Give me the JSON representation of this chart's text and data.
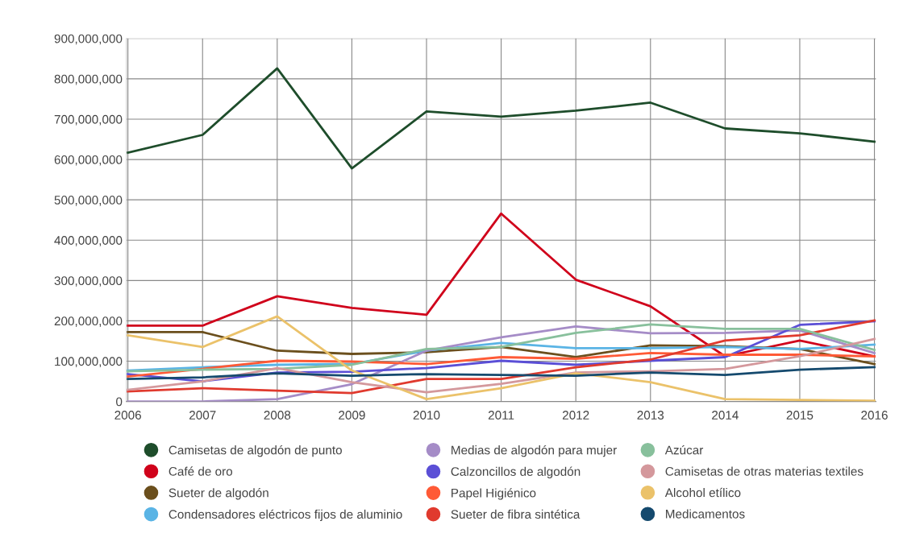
{
  "chart_data": {
    "type": "line",
    "categories": [
      "2006",
      "2007",
      "2008",
      "2009",
      "2010",
      "2011",
      "2012",
      "2013",
      "2014",
      "2015",
      "2016"
    ],
    "ylim": [
      0,
      900000000
    ],
    "yticks": [
      0,
      {
        "value": 100000000,
        "label": "100,000,000"
      },
      {
        "value": 200000000,
        "label": "200,000,000"
      },
      {
        "value": 300000000,
        "label": "300,000,000"
      },
      {
        "value": 400000000,
        "label": "400,000,000"
      },
      {
        "value": 500000000,
        "label": "500,000,000"
      },
      {
        "value": 600000000,
        "label": "600,000,000"
      },
      {
        "value": 700000000,
        "label": "700,000,000"
      },
      {
        "value": 800000000,
        "label": "800,000,000"
      },
      {
        "value": 900000000,
        "label": "900,000,000"
      }
    ],
    "grid": true,
    "legend": "bottom",
    "line_style": "solid",
    "series": [
      {
        "name": "Camisetas de algodón de punto",
        "color": "#1e4d2b",
        "values": [
          617000000,
          661000000,
          826000000,
          578000000,
          719000000,
          706000000,
          721000000,
          741000000,
          677000000,
          665000000,
          644000000
        ]
      },
      {
        "name": "Café de oro",
        "color": "#d0021b",
        "values": [
          188000000,
          188000000,
          261000000,
          232000000,
          215000000,
          466000000,
          302000000,
          236000000,
          112000000,
          151000000,
          112000000
        ]
      },
      {
        "name": "Sueter de algodón",
        "color": "#6b4f1d",
        "values": [
          172000000,
          172000000,
          126000000,
          118000000,
          122000000,
          135000000,
          110000000,
          139000000,
          137000000,
          130000000,
          93000000
        ]
      },
      {
        "name": "Condensadores eléctricos fijos de aluminio",
        "color": "#5ab4e5",
        "values": [
          77000000,
          85000000,
          91000000,
          93000000,
          126000000,
          145000000,
          132000000,
          132000000,
          135000000,
          130000000,
          141000000
        ]
      },
      {
        "name": "Medias de algodón para mujer",
        "color": "#a58cc7",
        "values": [
          0,
          0,
          6000000,
          43000000,
          126000000,
          159000000,
          186000000,
          169000000,
          170000000,
          176000000,
          120000000
        ]
      },
      {
        "name": "Calzoncillos de algodón",
        "color": "#5b4fd6",
        "values": [
          68000000,
          50000000,
          72000000,
          74000000,
          83000000,
          101000000,
          91000000,
          101000000,
          110000000,
          190000000,
          199000000
        ]
      },
      {
        "name": "Papel Higiénico",
        "color": "#ff5a36",
        "values": [
          62000000,
          81000000,
          101000000,
          99000000,
          93000000,
          110000000,
          106000000,
          120000000,
          116000000,
          116000000,
          112000000
        ]
      },
      {
        "name": "Sueter de fibra sintética",
        "color": "#e03a2e",
        "values": [
          25000000,
          33000000,
          27000000,
          21000000,
          56000000,
          56000000,
          85000000,
          104000000,
          151000000,
          164000000,
          201000000
        ]
      },
      {
        "name": "Azúcar",
        "color": "#88c09c",
        "values": [
          75000000,
          79000000,
          81000000,
          91000000,
          130000000,
          135000000,
          170000000,
          191000000,
          180000000,
          180000000,
          128000000
        ]
      },
      {
        "name": "Camisetas de otras materias textiles",
        "color": "#d4989c",
        "values": [
          29000000,
          50000000,
          83000000,
          48000000,
          23000000,
          44000000,
          72000000,
          75000000,
          81000000,
          112000000,
          155000000
        ]
      },
      {
        "name": "Alcohol etílico",
        "color": "#ebc26a",
        "values": [
          164000000,
          135000000,
          211000000,
          77000000,
          6000000,
          33000000,
          70000000,
          48000000,
          6000000,
          4000000,
          2000000
        ]
      },
      {
        "name": "Medicamentos",
        "color": "#154a6e",
        "values": [
          56000000,
          60000000,
          70000000,
          64000000,
          68000000,
          66000000,
          64000000,
          72000000,
          66000000,
          79000000,
          85000000
        ]
      }
    ]
  }
}
